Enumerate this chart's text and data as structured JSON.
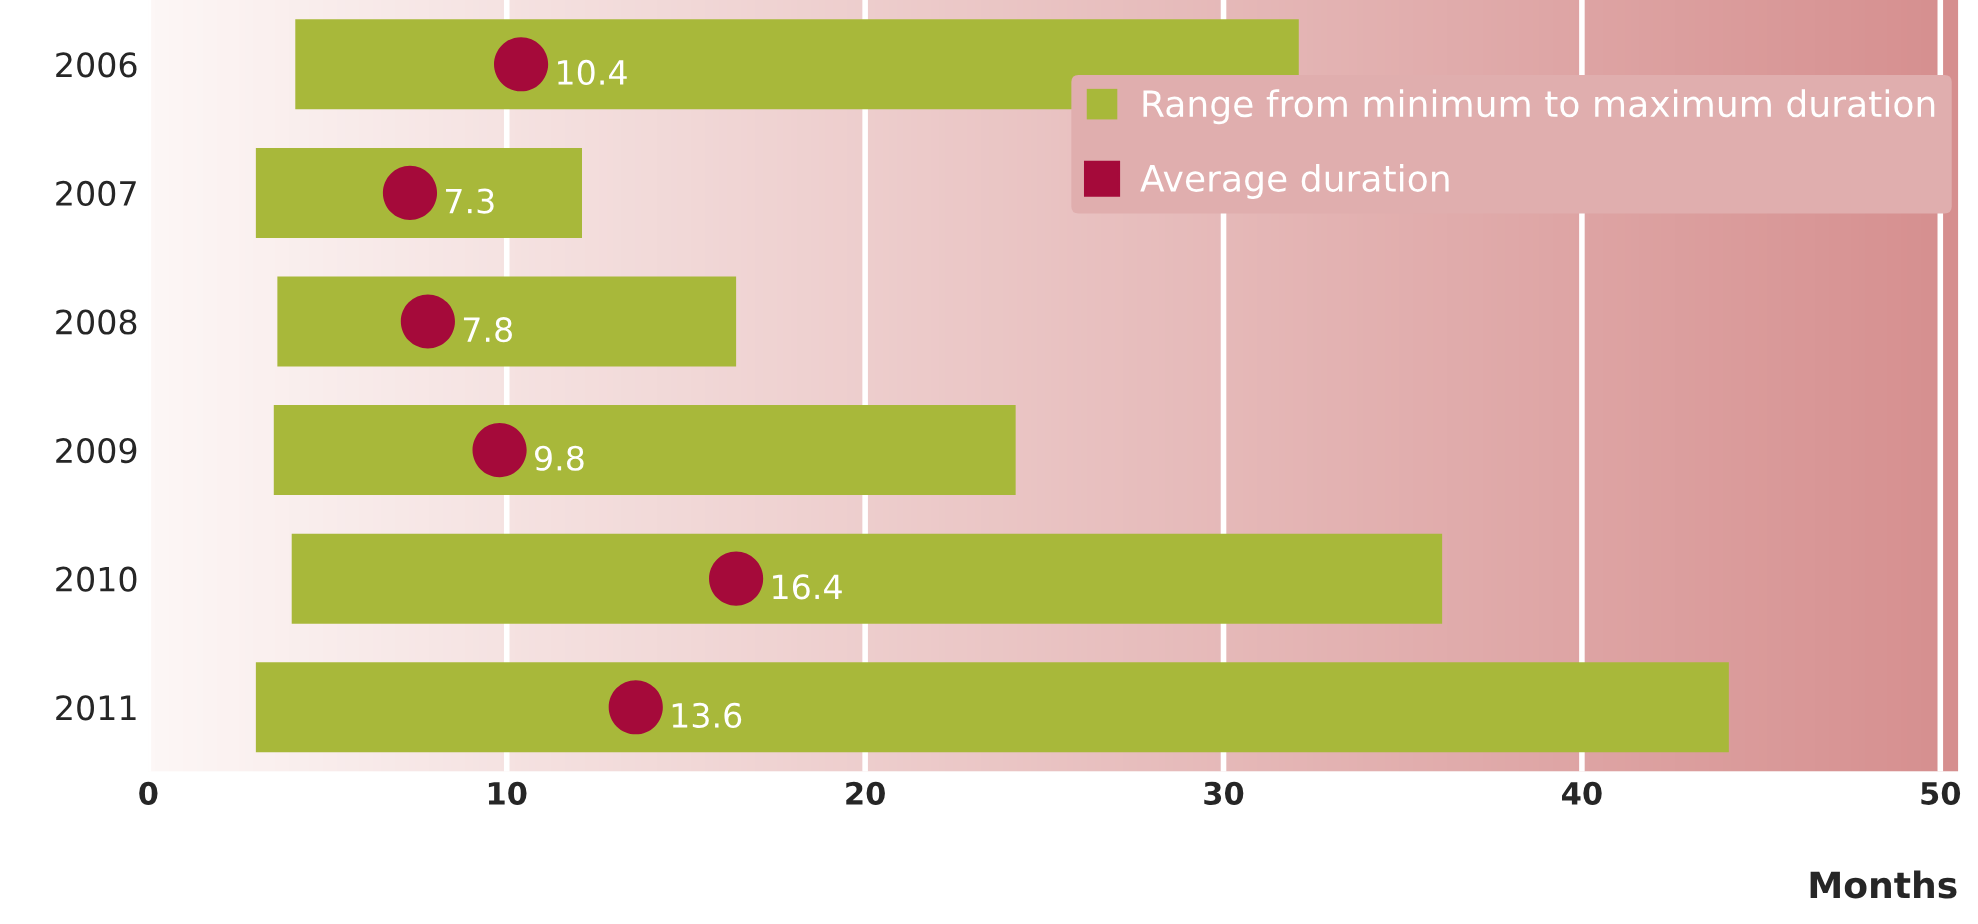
{
  "chart_data": {
    "type": "bar",
    "orientation": "horizontal",
    "xlabel": "Months",
    "categories": [
      "2006",
      "2007",
      "2008",
      "2009",
      "2010",
      "2011"
    ],
    "series": [
      {
        "name": "Range from minimum to maximum duration",
        "color": "#a8b83a",
        "base": [
          4.1,
          3.0,
          3.6,
          3.5,
          4.0,
          3.0
        ],
        "values": [
          28.0,
          9.1,
          12.8,
          20.7,
          32.1,
          41.1
        ]
      },
      {
        "name": "Average duration",
        "type": "scatter",
        "color": "#a50a3a",
        "values": [
          10.4,
          7.3,
          7.8,
          9.8,
          16.4,
          13.6
        ],
        "value_labels": [
          "10.4",
          "7.3",
          "7.8",
          "9.8",
          "16.4",
          "13.6"
        ]
      }
    ],
    "xlim": [
      0,
      50.5
    ],
    "xticks": [
      0,
      10,
      20,
      30,
      40,
      50
    ],
    "grid": "x",
    "legend": "top right",
    "marker": "circle"
  }
}
